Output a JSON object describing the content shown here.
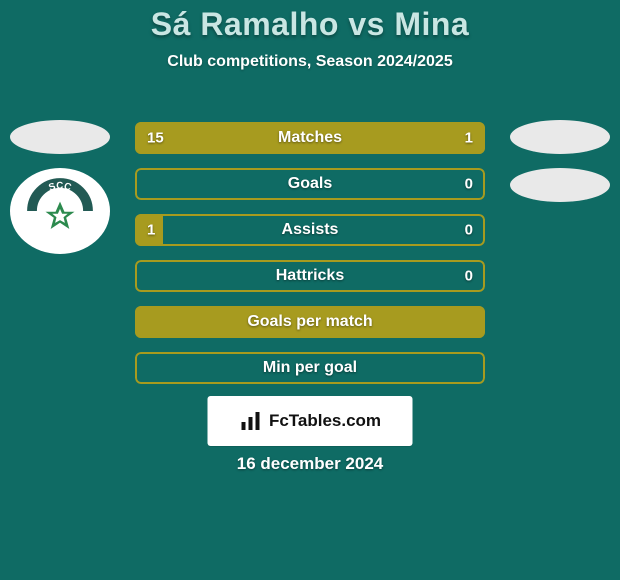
{
  "background_color": "#0f6b64",
  "title": {
    "text": "Sá Ramalho vs Mina",
    "color": "#c9e6e3",
    "fontsize": 32
  },
  "subtitle": {
    "text": "Club competitions, Season 2024/2025",
    "color": "#ffffff",
    "fontsize": 16
  },
  "bars": {
    "accent_color": "#a79b1f",
    "label_fontsize": 16,
    "value_fontsize": 15,
    "rows": [
      {
        "label": "Matches",
        "left_value": "15",
        "right_value": "1",
        "left_pct": 80,
        "right_pct": 20,
        "show_left": true,
        "show_right": true
      },
      {
        "label": "Goals",
        "left_value": "",
        "right_value": "0",
        "left_pct": 0,
        "right_pct": 0,
        "show_left": false,
        "show_right": true
      },
      {
        "label": "Assists",
        "left_value": "1",
        "right_value": "0",
        "left_pct": 8,
        "right_pct": 0,
        "show_left": true,
        "show_right": true
      },
      {
        "label": "Hattricks",
        "left_value": "",
        "right_value": "0",
        "left_pct": 0,
        "right_pct": 0,
        "show_left": false,
        "show_right": true
      },
      {
        "label": "Goals per match",
        "left_value": "",
        "right_value": "",
        "left_pct": 100,
        "right_pct": 0,
        "show_left": false,
        "show_right": false
      },
      {
        "label": "Min per goal",
        "left_value": "",
        "right_value": "",
        "left_pct": 0,
        "right_pct": 0,
        "show_left": false,
        "show_right": false
      }
    ]
  },
  "brand": {
    "text": "FcTables.com",
    "fontsize": 17,
    "icon_color": "#111111"
  },
  "footer_date": {
    "text": "16 december 2024",
    "fontsize": 17
  },
  "badges": {
    "ellipse_color": "#e9e9e9",
    "club_badge": {
      "ring_color": "#ffffff",
      "arc_color": "#225a54",
      "arc_text": "SCC",
      "star_color": "#2c8a4e",
      "star_outline": "#ffffff"
    }
  }
}
